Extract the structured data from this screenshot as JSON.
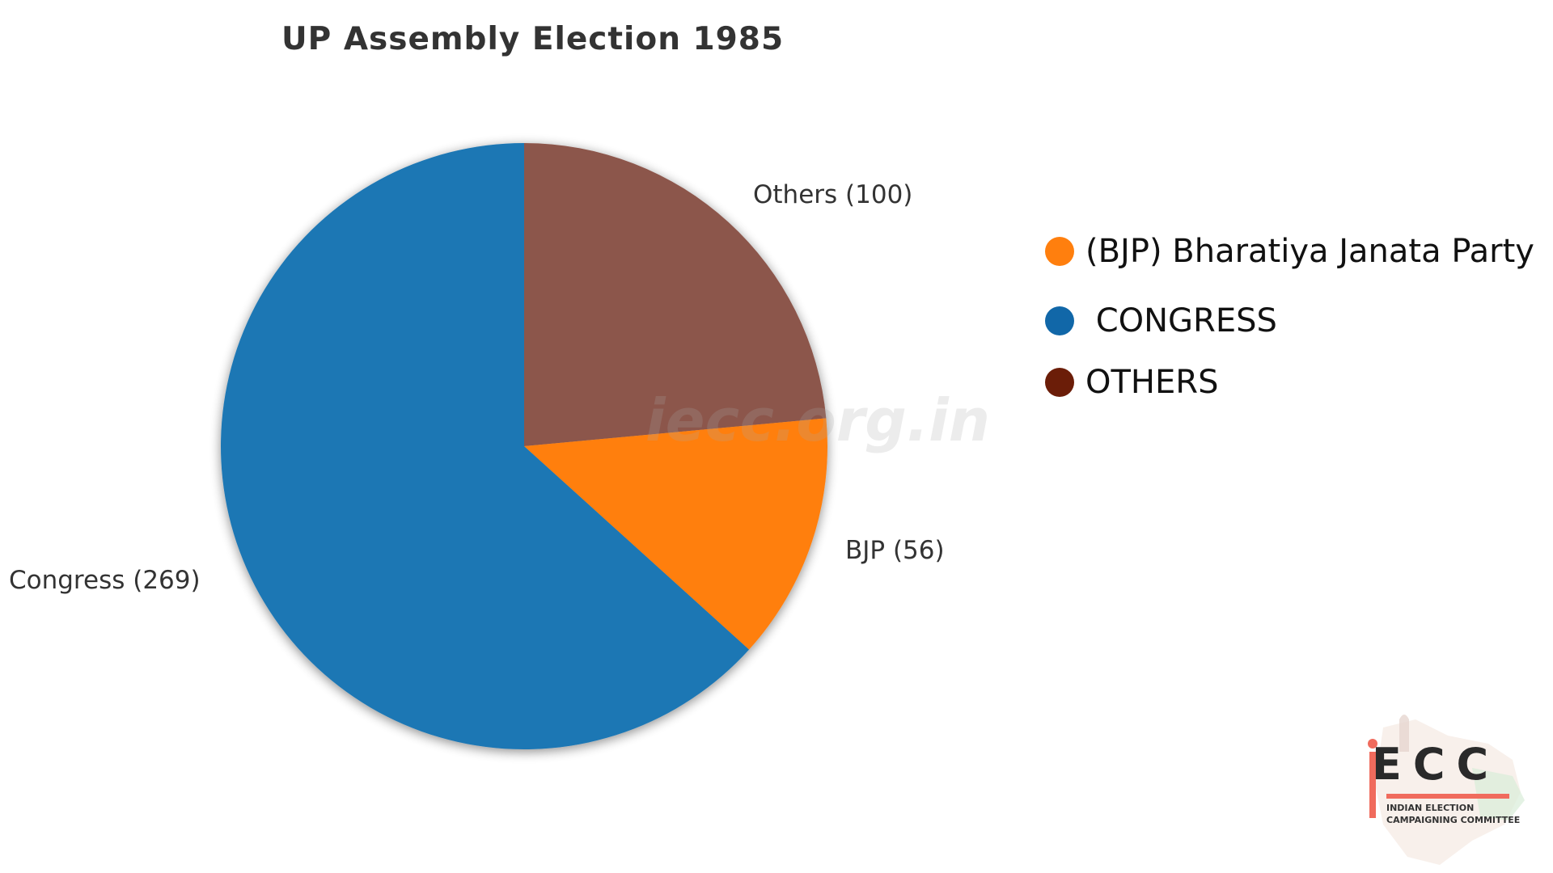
{
  "chart_data": {
    "type": "pie",
    "title": "UP Assembly Election 1985",
    "slices": [
      {
        "label": "Others (100)",
        "name": "Others",
        "value": 100,
        "color": "#8c564b"
      },
      {
        "label": "BJP (56)",
        "name": "BJP",
        "value": 56,
        "color": "#ff7f0e"
      },
      {
        "label": "Congress (269)",
        "name": "Congress",
        "value": 269,
        "color": "#1f77b4"
      }
    ],
    "start_angle_deg": 90,
    "direction": "clockwise",
    "legend": {
      "placement": "right",
      "entries": [
        {
          "label": "(BJP) Bharatiya Janata Party",
          "color": "#ff7f0e"
        },
        {
          "label": " CONGRESS",
          "color": "#1167a8"
        },
        {
          "label": "OTHERS",
          "color": "#6b1d08"
        }
      ]
    }
  },
  "watermark": "iecc.org.in",
  "logo": {
    "text": "iECC",
    "subtitle_line1": "INDIAN ELECTION",
    "subtitle_line2": "CAMPAIGNING COMMITTEE",
    "accent_color": "#f06b5d"
  }
}
